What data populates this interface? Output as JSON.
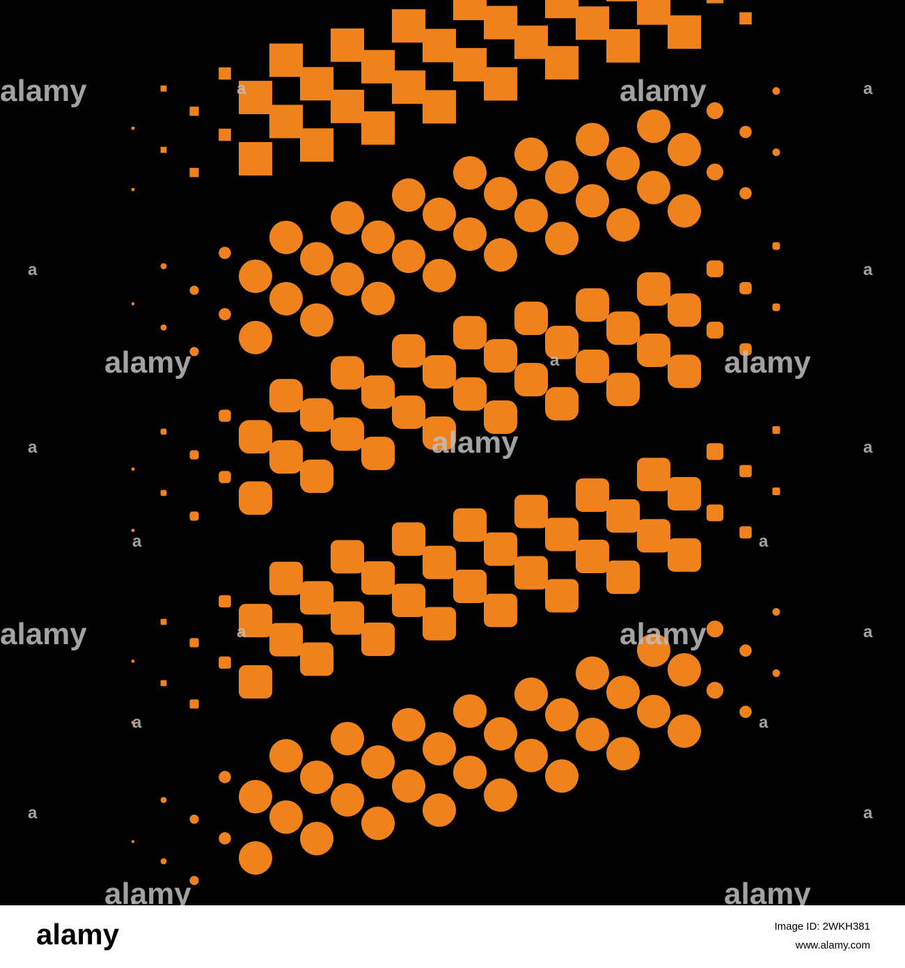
{
  "watermark": "alamy",
  "watermark_mark": "a",
  "footer": {
    "logo": "alamy",
    "image_id": "Image ID: 2WKH381",
    "url": "www.alamy.com"
  }
}
